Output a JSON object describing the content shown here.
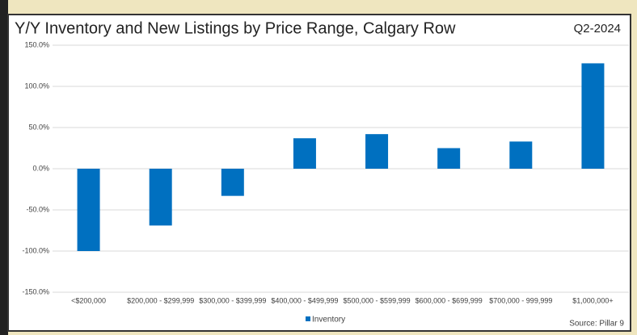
{
  "chart_data": {
    "type": "bar",
    "title": "Y/Y Inventory and New Listings by Price Range, Calgary Row",
    "subtitle": "Q2-2024",
    "source": "Source: Pillar 9",
    "categories": [
      "<$200,000",
      "$200,000 - $299,999",
      "$300,000 - $399,999",
      "$400,000 - $499,999",
      "$500,000 - $599,999",
      "$600,000 - $699,999",
      "$700,000 - 999,999",
      "$1,000,000+"
    ],
    "series": [
      {
        "name": "Inventory",
        "color": "#0070c0",
        "values": [
          -100,
          -69,
          -33,
          37,
          42,
          25,
          33,
          128
        ]
      }
    ],
    "ylim": [
      -150,
      150
    ],
    "yticks": [
      {
        "value": -150,
        "label": "-150.0%"
      },
      {
        "value": -100,
        "label": "-100.0%"
      },
      {
        "value": -50,
        "label": "-50.0%"
      },
      {
        "value": 0,
        "label": "0.0%"
      },
      {
        "value": 50,
        "label": "50.0%"
      },
      {
        "value": 100,
        "label": "100.0%"
      },
      {
        "value": 150,
        "label": "150.0%"
      }
    ],
    "grid": true,
    "legend": "bottom"
  }
}
